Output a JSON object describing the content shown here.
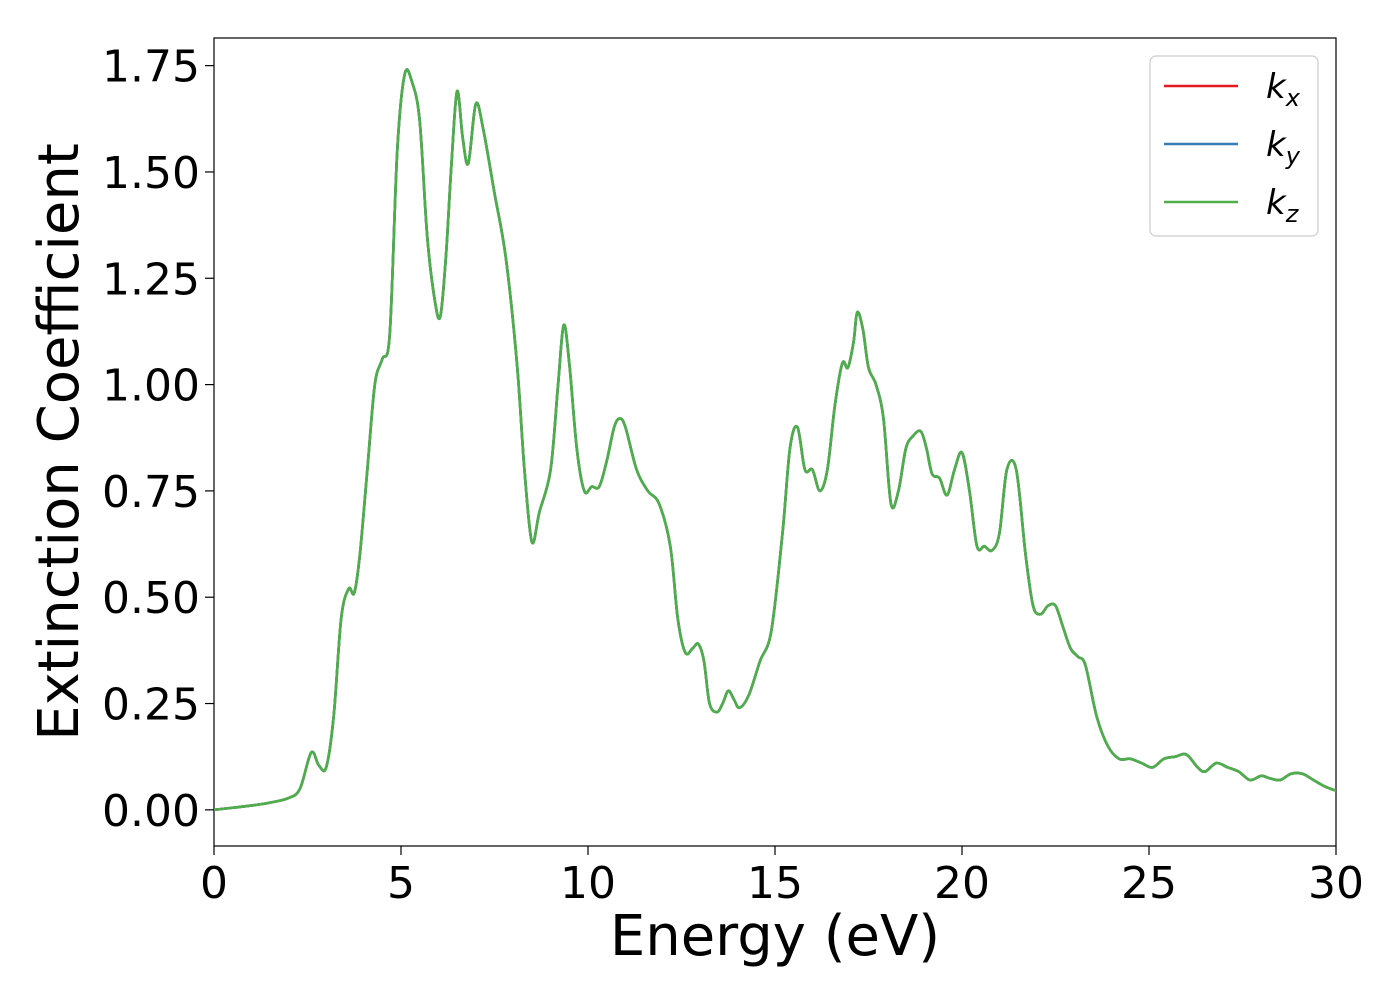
{
  "chart_data": {
    "type": "line",
    "xlabel": "Energy (eV)",
    "ylabel": "Extinction Coefficient",
    "xlim": [
      0,
      30
    ],
    "ylim": [
      -0.085,
      1.815
    ],
    "xticks": [
      0,
      5,
      10,
      15,
      20,
      25,
      30
    ],
    "xtick_labels": [
      "0",
      "5",
      "10",
      "15",
      "20",
      "25",
      "30"
    ],
    "yticks": [
      0.0,
      0.25,
      0.5,
      0.75,
      1.0,
      1.25,
      1.5,
      1.75
    ],
    "ytick_labels": [
      "0.00",
      "0.25",
      "0.50",
      "0.75",
      "1.00",
      "1.25",
      "1.50",
      "1.75"
    ],
    "grid": false,
    "legend_position": "top-right",
    "x": [
      0,
      0.5,
      1,
      1.5,
      2,
      2.3,
      2.6,
      2.8,
      3.0,
      3.2,
      3.4,
      3.6,
      3.75,
      3.9,
      4.1,
      4.3,
      4.5,
      4.7,
      4.9,
      5.1,
      5.3,
      5.5,
      5.7,
      5.9,
      6.05,
      6.2,
      6.35,
      6.5,
      6.65,
      6.8,
      7.0,
      7.2,
      7.5,
      7.8,
      8.1,
      8.3,
      8.5,
      8.7,
      9.0,
      9.2,
      9.35,
      9.5,
      9.7,
      9.9,
      10.1,
      10.3,
      10.5,
      10.7,
      10.85,
      11.0,
      11.3,
      11.6,
      11.9,
      12.2,
      12.4,
      12.6,
      12.8,
      12.95,
      13.1,
      13.25,
      13.45,
      13.6,
      13.75,
      13.9,
      14.05,
      14.3,
      14.6,
      14.9,
      15.2,
      15.4,
      15.6,
      15.8,
      16.0,
      16.2,
      16.4,
      16.6,
      16.8,
      16.95,
      17.1,
      17.2,
      17.35,
      17.5,
      17.7,
      17.9,
      18.1,
      18.3,
      18.5,
      18.7,
      18.9,
      19.05,
      19.2,
      19.4,
      19.6,
      19.8,
      20.0,
      20.2,
      20.4,
      20.6,
      20.8,
      21.0,
      21.2,
      21.45,
      21.7,
      21.9,
      22.1,
      22.3,
      22.5,
      22.7,
      22.9,
      23.1,
      23.3,
      23.6,
      23.9,
      24.2,
      24.5,
      24.8,
      25.1,
      25.4,
      25.7,
      26.0,
      26.3,
      26.5,
      26.8,
      27.1,
      27.4,
      27.7,
      28.0,
      28.2,
      28.5,
      28.8,
      29.1,
      29.4,
      29.7,
      30.0
    ],
    "series": [
      {
        "name": "k_x",
        "color": "#e41a1c",
        "values": [
          0.0,
          0.005,
          0.01,
          0.017,
          0.028,
          0.05,
          0.135,
          0.105,
          0.1,
          0.22,
          0.45,
          0.52,
          0.51,
          0.6,
          0.8,
          1.0,
          1.06,
          1.12,
          1.55,
          1.73,
          1.71,
          1.62,
          1.35,
          1.2,
          1.16,
          1.3,
          1.52,
          1.69,
          1.58,
          1.52,
          1.66,
          1.6,
          1.45,
          1.3,
          1.05,
          0.8,
          0.63,
          0.7,
          0.8,
          1.0,
          1.14,
          1.05,
          0.85,
          0.75,
          0.76,
          0.76,
          0.82,
          0.9,
          0.92,
          0.9,
          0.8,
          0.75,
          0.72,
          0.62,
          0.45,
          0.37,
          0.38,
          0.39,
          0.35,
          0.25,
          0.23,
          0.25,
          0.28,
          0.26,
          0.24,
          0.27,
          0.35,
          0.42,
          0.65,
          0.85,
          0.9,
          0.8,
          0.8,
          0.75,
          0.8,
          0.95,
          1.05,
          1.04,
          1.1,
          1.17,
          1.13,
          1.04,
          1.0,
          0.92,
          0.72,
          0.75,
          0.85,
          0.88,
          0.89,
          0.85,
          0.79,
          0.78,
          0.74,
          0.8,
          0.84,
          0.75,
          0.62,
          0.62,
          0.61,
          0.65,
          0.8,
          0.8,
          0.6,
          0.48,
          0.46,
          0.48,
          0.48,
          0.43,
          0.38,
          0.36,
          0.34,
          0.22,
          0.15,
          0.12,
          0.12,
          0.11,
          0.1,
          0.12,
          0.125,
          0.13,
          0.1,
          0.09,
          0.11,
          0.1,
          0.09,
          0.07,
          0.08,
          0.075,
          0.07,
          0.085,
          0.085,
          0.07,
          0.055,
          0.045
        ]
      },
      {
        "name": "k_y",
        "color": "#377eb8",
        "values": [
          0.0,
          0.005,
          0.01,
          0.017,
          0.028,
          0.05,
          0.135,
          0.105,
          0.1,
          0.22,
          0.45,
          0.52,
          0.51,
          0.6,
          0.8,
          1.0,
          1.06,
          1.12,
          1.55,
          1.73,
          1.71,
          1.62,
          1.35,
          1.2,
          1.16,
          1.3,
          1.52,
          1.69,
          1.58,
          1.52,
          1.66,
          1.6,
          1.45,
          1.3,
          1.05,
          0.8,
          0.63,
          0.7,
          0.8,
          1.0,
          1.14,
          1.05,
          0.85,
          0.75,
          0.76,
          0.76,
          0.82,
          0.9,
          0.92,
          0.9,
          0.8,
          0.75,
          0.72,
          0.62,
          0.45,
          0.37,
          0.38,
          0.39,
          0.35,
          0.25,
          0.23,
          0.25,
          0.28,
          0.26,
          0.24,
          0.27,
          0.35,
          0.42,
          0.65,
          0.85,
          0.9,
          0.8,
          0.8,
          0.75,
          0.8,
          0.95,
          1.05,
          1.04,
          1.1,
          1.17,
          1.13,
          1.04,
          1.0,
          0.92,
          0.72,
          0.75,
          0.85,
          0.88,
          0.89,
          0.85,
          0.79,
          0.78,
          0.74,
          0.8,
          0.84,
          0.75,
          0.62,
          0.62,
          0.61,
          0.65,
          0.8,
          0.8,
          0.6,
          0.48,
          0.46,
          0.48,
          0.48,
          0.43,
          0.38,
          0.36,
          0.34,
          0.22,
          0.15,
          0.12,
          0.12,
          0.11,
          0.1,
          0.12,
          0.125,
          0.13,
          0.1,
          0.09,
          0.11,
          0.1,
          0.09,
          0.07,
          0.08,
          0.075,
          0.07,
          0.085,
          0.085,
          0.07,
          0.055,
          0.045
        ]
      },
      {
        "name": "k_z",
        "color": "#4daf4a",
        "values": [
          0.0,
          0.005,
          0.01,
          0.017,
          0.028,
          0.05,
          0.135,
          0.105,
          0.1,
          0.22,
          0.45,
          0.52,
          0.51,
          0.6,
          0.8,
          1.0,
          1.06,
          1.12,
          1.55,
          1.73,
          1.71,
          1.62,
          1.35,
          1.2,
          1.16,
          1.3,
          1.52,
          1.69,
          1.58,
          1.52,
          1.66,
          1.6,
          1.45,
          1.3,
          1.05,
          0.8,
          0.63,
          0.7,
          0.8,
          1.0,
          1.14,
          1.05,
          0.85,
          0.75,
          0.76,
          0.76,
          0.82,
          0.9,
          0.92,
          0.9,
          0.8,
          0.75,
          0.72,
          0.62,
          0.45,
          0.37,
          0.38,
          0.39,
          0.35,
          0.25,
          0.23,
          0.25,
          0.28,
          0.26,
          0.24,
          0.27,
          0.35,
          0.42,
          0.65,
          0.85,
          0.9,
          0.8,
          0.8,
          0.75,
          0.8,
          0.95,
          1.05,
          1.04,
          1.1,
          1.17,
          1.13,
          1.04,
          1.0,
          0.92,
          0.72,
          0.75,
          0.85,
          0.88,
          0.89,
          0.85,
          0.79,
          0.78,
          0.74,
          0.8,
          0.84,
          0.75,
          0.62,
          0.62,
          0.61,
          0.65,
          0.8,
          0.8,
          0.6,
          0.48,
          0.46,
          0.48,
          0.48,
          0.43,
          0.38,
          0.36,
          0.34,
          0.22,
          0.15,
          0.12,
          0.12,
          0.11,
          0.1,
          0.12,
          0.125,
          0.13,
          0.1,
          0.09,
          0.11,
          0.1,
          0.09,
          0.07,
          0.08,
          0.075,
          0.07,
          0.085,
          0.085,
          0.07,
          0.055,
          0.045
        ]
      }
    ],
    "legend": [
      {
        "base": "k",
        "sub": "x"
      },
      {
        "base": "k",
        "sub": "y"
      },
      {
        "base": "k",
        "sub": "z"
      }
    ]
  }
}
